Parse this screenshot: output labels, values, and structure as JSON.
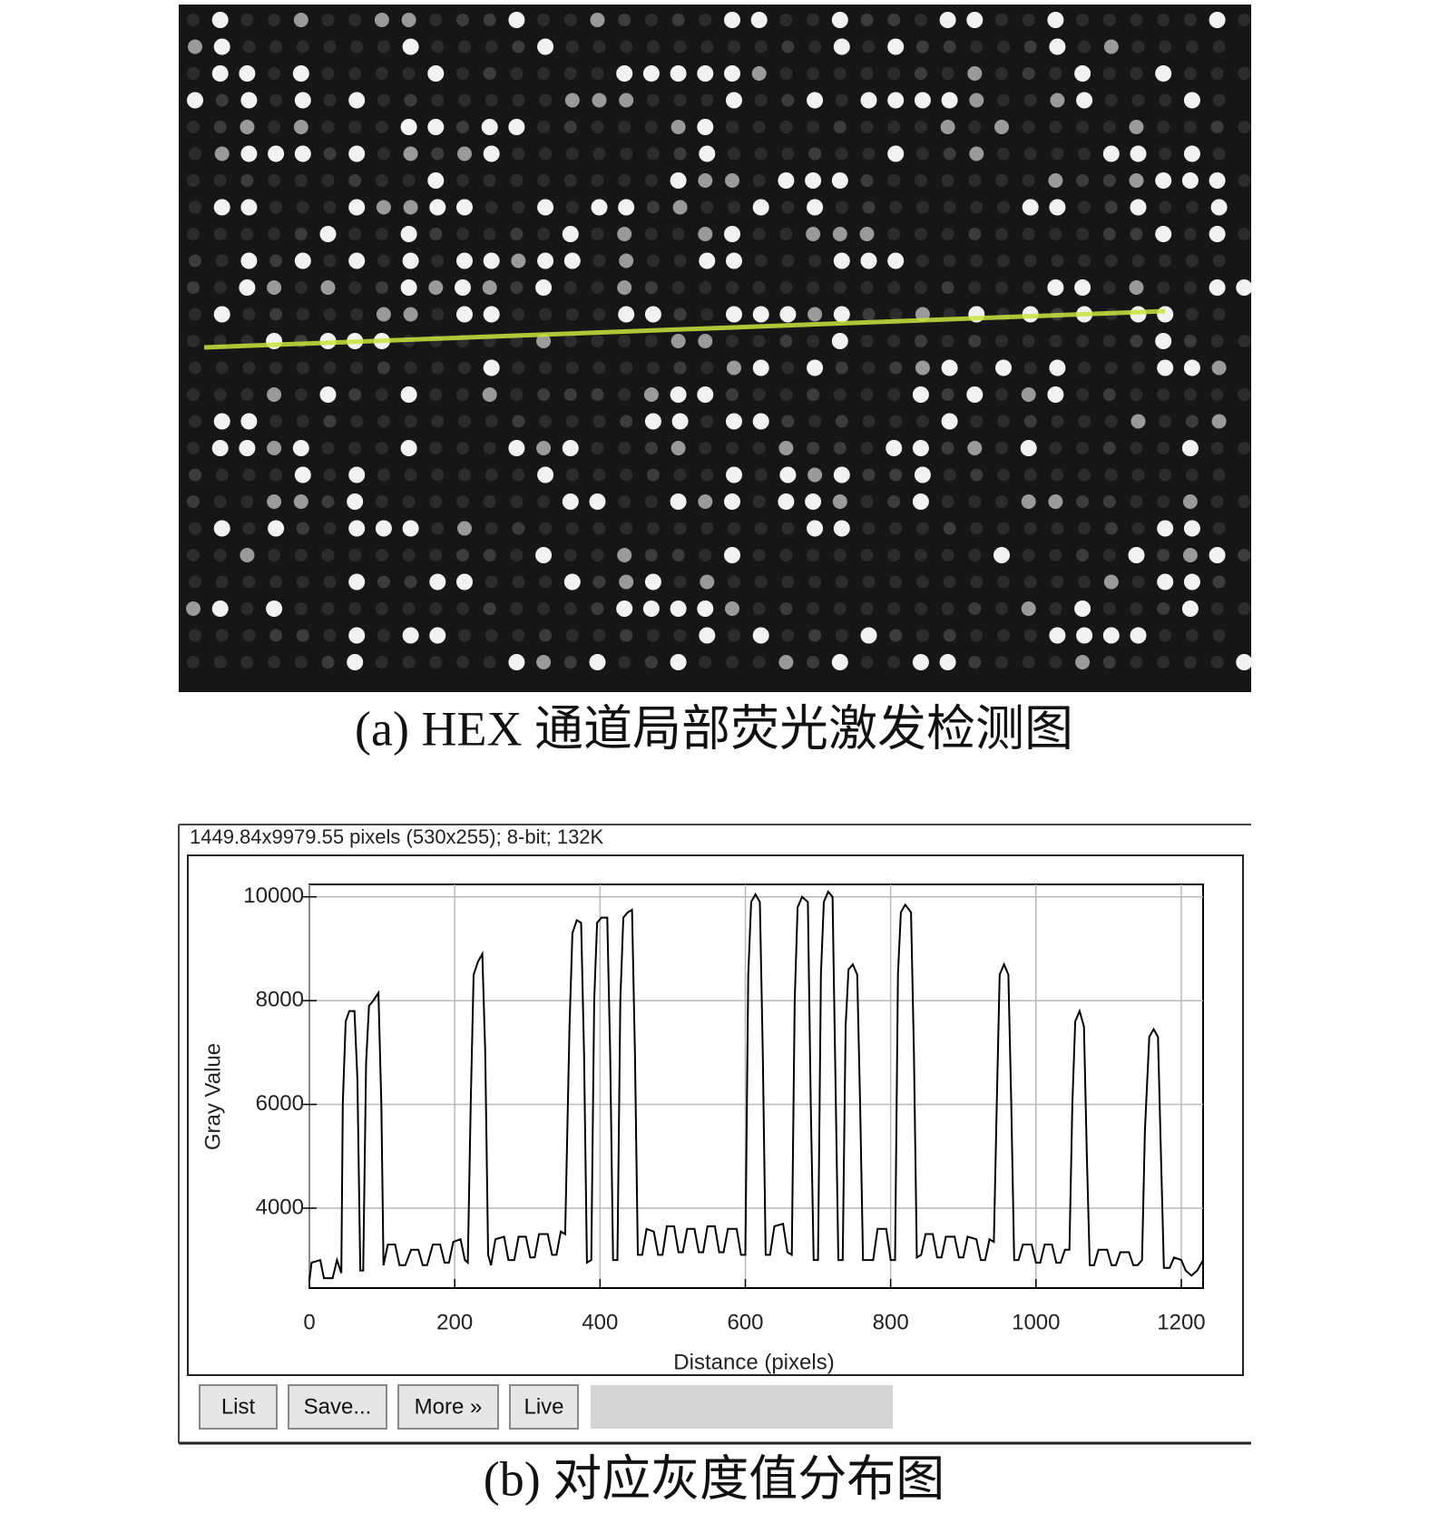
{
  "figure_a": {
    "caption": "(a) HEX 通道局部荧光激发检测图"
  },
  "window": {
    "status": "1449.84x9979.55 pixels (530x255); 8-bit; 132K",
    "buttons": [
      "List",
      "Save...",
      "More »",
      "Live"
    ]
  },
  "chart_data": {
    "type": "line",
    "xlabel": "Distance (pixels)",
    "ylabel": "Gray Value",
    "color": "#000000",
    "grid": true,
    "xlim": [
      0,
      1230
    ],
    "ylim": [
      2460,
      10240
    ],
    "xticks": [
      0,
      200,
      400,
      600,
      800,
      1000,
      1200
    ],
    "yticks": [
      4000,
      6000,
      8000,
      10000
    ],
    "x": [
      0,
      3,
      15,
      20,
      32,
      38,
      44,
      46,
      50,
      55,
      62,
      66,
      70,
      74,
      78,
      82,
      88,
      95,
      99,
      102,
      108,
      118,
      124,
      132,
      140,
      150,
      156,
      162,
      170,
      180,
      186,
      192,
      198,
      208,
      214,
      218,
      222,
      226,
      232,
      238,
      242,
      246,
      250,
      256,
      268,
      274,
      282,
      288,
      298,
      304,
      310,
      316,
      328,
      334,
      340,
      346,
      352,
      358,
      362,
      368,
      374,
      378,
      382,
      388,
      392,
      396,
      402,
      410,
      414,
      418,
      424,
      428,
      432,
      438,
      444,
      448,
      452,
      458,
      464,
      474,
      480,
      486,
      492,
      502,
      508,
      514,
      520,
      530,
      536,
      542,
      548,
      558,
      564,
      570,
      576,
      588,
      594,
      600,
      604,
      608,
      614,
      620,
      624,
      628,
      634,
      640,
      652,
      658,
      664,
      668,
      672,
      678,
      686,
      690,
      694,
      700,
      704,
      708,
      714,
      720,
      724,
      728,
      734,
      738,
      742,
      748,
      754,
      758,
      762,
      776,
      782,
      794,
      800,
      806,
      810,
      814,
      820,
      828,
      832,
      836,
      842,
      848,
      858,
      864,
      870,
      876,
      888,
      894,
      900,
      906,
      918,
      924,
      930,
      936,
      942,
      946,
      950,
      956,
      962,
      966,
      970,
      976,
      982,
      994,
      1000,
      1006,
      1012,
      1022,
      1028,
      1034,
      1040,
      1046,
      1050,
      1054,
      1060,
      1066,
      1070,
      1074,
      1080,
      1086,
      1098,
      1104,
      1110,
      1116,
      1128,
      1134,
      1140,
      1146,
      1150,
      1156,
      1162,
      1168,
      1172,
      1176,
      1184,
      1190,
      1200,
      1206,
      1214,
      1222,
      1230
    ],
    "values": [
      2600,
      2950,
      3000,
      2650,
      2650,
      3000,
      2750,
      6000,
      7600,
      7800,
      7800,
      6500,
      2800,
      2800,
      6800,
      7900,
      8000,
      8150,
      6000,
      2900,
      3300,
      3300,
      2900,
      2900,
      3200,
      3200,
      2900,
      2900,
      3300,
      3300,
      2950,
      2950,
      3350,
      3400,
      3000,
      2950,
      6000,
      8500,
      8750,
      8900,
      7000,
      3100,
      2900,
      3400,
      3450,
      3000,
      3000,
      3450,
      3450,
      3050,
      3050,
      3500,
      3500,
      3100,
      3100,
      3550,
      3500,
      7500,
      9300,
      9550,
      9500,
      7000,
      2950,
      3000,
      8000,
      9500,
      9600,
      9600,
      7000,
      3000,
      3000,
      8000,
      9600,
      9700,
      9750,
      7000,
      3100,
      3100,
      3600,
      3550,
      3100,
      3100,
      3650,
      3650,
      3150,
      3150,
      3600,
      3600,
      3150,
      3150,
      3650,
      3650,
      3150,
      3150,
      3600,
      3600,
      3100,
      3100,
      8500,
      9900,
      10050,
      9900,
      7000,
      3100,
      3100,
      3650,
      3700,
      3150,
      3100,
      8000,
      9800,
      10000,
      9900,
      6000,
      3000,
      3000,
      8500,
      9900,
      10100,
      10000,
      6500,
      3000,
      3000,
      7500,
      8600,
      8700,
      8500,
      6000,
      3000,
      3000,
      3600,
      3600,
      3000,
      3000,
      8500,
      9700,
      9850,
      9700,
      7000,
      3050,
      3100,
      3500,
      3500,
      3050,
      3050,
      3450,
      3450,
      3050,
      3050,
      3450,
      3400,
      3000,
      3000,
      3400,
      3350,
      6000,
      8500,
      8700,
      8500,
      6000,
      3000,
      3000,
      3300,
      3300,
      2950,
      2950,
      3300,
      3300,
      2950,
      2950,
      3200,
      3200,
      6000,
      7600,
      7800,
      7500,
      5000,
      2900,
      2900,
      3200,
      3200,
      2900,
      2900,
      3150,
      3150,
      2900,
      2900,
      3000,
      5500,
      7300,
      7450,
      7300,
      5000,
      2850,
      2850,
      3050,
      3000,
      2800,
      2700,
      2800,
      3000
    ]
  },
  "figure_b": {
    "caption": "(b) 对应灰度值分布图"
  }
}
